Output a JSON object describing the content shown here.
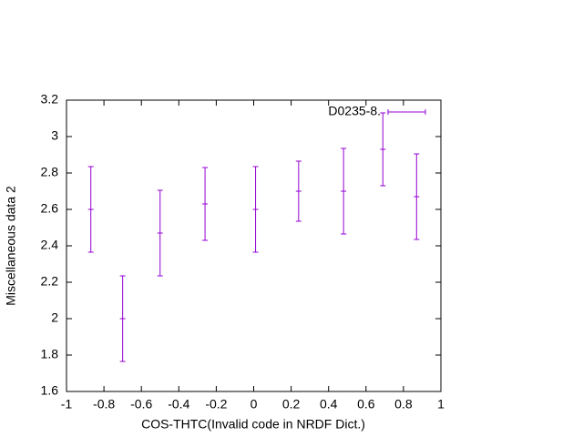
{
  "chart_data": {
    "type": "errorbar",
    "x_label": "COS-THTC(Invalid code in NRDF Dict.)",
    "y_label": "Miscellaneous data 2",
    "xlim": [
      -1,
      1
    ],
    "xticks": [
      -1,
      -0.8,
      -0.6,
      -0.4,
      -0.2,
      0,
      0.2,
      0.4,
      0.6,
      0.8,
      1
    ],
    "ylim": [
      1.6,
      3.2
    ],
    "yticks": [
      1.6,
      1.8,
      2,
      2.2,
      2.4,
      2.6,
      2.8,
      3,
      3.2
    ],
    "legend": "top right",
    "series": [
      {
        "name": "D0235-8.",
        "color": "#9400d3",
        "x": [
          -0.87,
          -0.7,
          -0.5,
          -0.26,
          0.01,
          0.24,
          0.48,
          0.69,
          0.87
        ],
        "values": [
          2.6,
          2.0,
          2.47,
          2.63,
          2.6,
          2.7,
          2.7,
          2.93,
          2.67
        ],
        "errors": [
          0.235,
          0.235,
          0.235,
          0.2,
          0.235,
          0.165,
          0.235,
          0.2,
          0.235
        ]
      }
    ]
  }
}
